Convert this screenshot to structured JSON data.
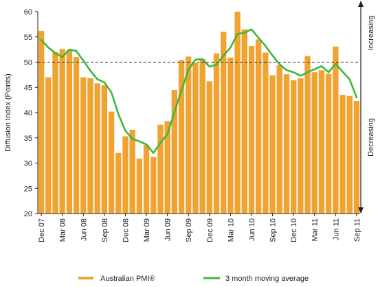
{
  "chart_data": {
    "type": "bar",
    "title": "",
    "ylabel": "Diffusion Index (Points)",
    "xlabel": "",
    "ylim": [
      20,
      60
    ],
    "y_ticks": [
      "20",
      "25",
      "30",
      "35",
      "40",
      "45",
      "50",
      "55",
      "60"
    ],
    "reference_value": 50,
    "x_tick_labels": [
      "Dec 07",
      "Mar 08",
      "Jun 08",
      "Sep 08",
      "Dec 08",
      "Mar 09",
      "Jun 09",
      "Sep 09",
      "Dec 09",
      "Mar 10",
      "Jun 10",
      "Sep 10",
      "Dec 10",
      "Mar 11",
      "Jun 11",
      "Sep 11"
    ],
    "categories": [
      "Dec 07",
      "Jan 08",
      "Feb 08",
      "Mar 08",
      "Apr 08",
      "May 08",
      "Jun 08",
      "Jul 08",
      "Aug 08",
      "Sep 08",
      "Oct 08",
      "Nov 08",
      "Dec 08",
      "Jan 09",
      "Feb 09",
      "Mar 09",
      "Apr 09",
      "May 09",
      "Jun 09",
      "Jul 09",
      "Aug 09",
      "Sep 09",
      "Oct 09",
      "Nov 09",
      "Dec 09",
      "Jan 10",
      "Feb 10",
      "Mar 10",
      "Apr 10",
      "May 10",
      "Jun 10",
      "Jul 10",
      "Aug 10",
      "Sep 10",
      "Oct 10",
      "Nov 10",
      "Dec 10",
      "Jan 11",
      "Feb 11",
      "Mar 11",
      "Apr 11",
      "May 11",
      "Jun 11",
      "Jul 11",
      "Aug 11",
      "Sep 11"
    ],
    "series": [
      {
        "name": "Australian PMI®",
        "type": "bar",
        "color": "#F0A330",
        "values": [
          56.2,
          47.0,
          52.0,
          52.6,
          52.4,
          51.0,
          47.0,
          46.8,
          45.8,
          45.4,
          40.2,
          32.0,
          35.3,
          36.6,
          30.9,
          33.6,
          31.2,
          37.6,
          38.3,
          44.5,
          50.4,
          51.1,
          49.8,
          50.6,
          46.2,
          51.7,
          56.0,
          50.9,
          60.0,
          56.5,
          53.2,
          54.5,
          51.9,
          47.4,
          49.4,
          47.6,
          46.4,
          46.8,
          51.2,
          48.0,
          48.4,
          47.7,
          53.1,
          43.5,
          43.3,
          42.3
        ]
      },
      {
        "name": "3 month moving average",
        "type": "line",
        "color": "#3DB83A",
        "values": [
          54.4,
          52.9,
          51.8,
          51.0,
          52.5,
          52.2,
          50.3,
          48.3,
          46.6,
          46.0,
          44.0,
          39.7,
          36.4,
          34.8,
          34.3,
          33.7,
          32.0,
          34.0,
          35.7,
          40.1,
          44.4,
          48.5,
          50.5,
          50.6,
          49.1,
          49.5,
          51.3,
          52.9,
          55.6,
          55.8,
          56.5,
          54.8,
          53.2,
          51.3,
          49.6,
          48.4,
          48.0,
          47.3,
          48.0,
          48.6,
          49.2,
          48.0,
          49.7,
          48.1,
          46.6,
          43.0
        ]
      }
    ],
    "side_labels": {
      "up": "Increasing",
      "down": "Decreasing"
    },
    "legend": {
      "placement": "bottom"
    }
  }
}
